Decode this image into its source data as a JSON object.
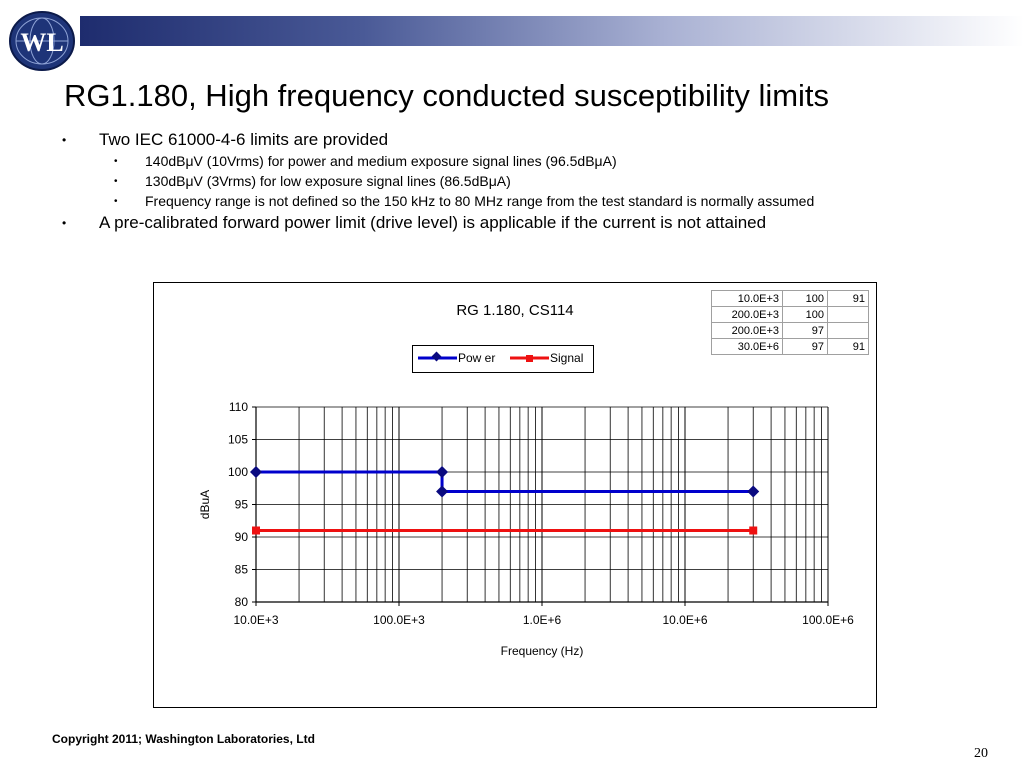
{
  "header": {
    "logo_text": "WL",
    "title": "RG1.180, High frequency conducted susceptibility limits"
  },
  "bullets": {
    "b1": "Two IEC 61000-4-6 limits are provided",
    "b1_1": "140dBμV (10Vrms) for power and medium exposure signal lines (96.5dBμA)",
    "b1_2": "130dBμV (3Vrms) for low exposure signal lines (86.5dBμA)",
    "b1_3": "Frequency range is not defined so the 150 kHz to 80 MHz range from the test standard is normally assumed",
    "b2": "A pre-calibrated forward power limit (drive level) is applicable if the current is not attained",
    "marker": "•"
  },
  "table": [
    [
      "10.0E+3",
      "100",
      "91"
    ],
    [
      "200.0E+3",
      "100",
      ""
    ],
    [
      "200.0E+3",
      "97",
      ""
    ],
    [
      "30.0E+6",
      "97",
      "91"
    ]
  ],
  "chart_data": {
    "type": "line",
    "title": "RG 1.180, CS114",
    "xlabel": "Frequency (Hz)",
    "ylabel": "dBuA",
    "x_scale": "log",
    "xlim": [
      10000,
      100000000
    ],
    "ylim": [
      80,
      110
    ],
    "yticks": [
      80,
      85,
      90,
      95,
      100,
      105,
      110
    ],
    "xtick_values": [
      10000,
      100000,
      1000000,
      10000000,
      100000000
    ],
    "xtick_labels": [
      "10.0E+3",
      "100.0E+3",
      "1.0E+6",
      "10.0E+6",
      "100.0E+6"
    ],
    "grid": true,
    "legend_position": "top-center",
    "series": [
      {
        "name": "Pow er",
        "color": "#0000cc",
        "marker": "diamond",
        "x": [
          10000,
          200000,
          200000,
          30000000
        ],
        "y": [
          100,
          100,
          97,
          97
        ]
      },
      {
        "name": "Signal",
        "color": "#ee1111",
        "marker": "square",
        "x": [
          10000,
          30000000
        ],
        "y": [
          91,
          91
        ]
      }
    ]
  },
  "footer": {
    "copyright": "Copyright 2011; Washington Laboratories, Ltd",
    "page_number": "20"
  },
  "colors": {
    "brand_blue": "#1e2c6e",
    "power": "#0000cc",
    "signal": "#ee1111"
  }
}
